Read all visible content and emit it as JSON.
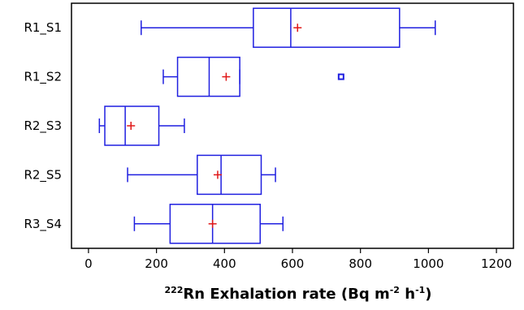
{
  "chart_data": {
    "type": "boxplot",
    "orientation": "horizontal",
    "categories": [
      "R1_S1",
      "R1_S2",
      "R2_S3",
      "R2_S5",
      "R3_S4"
    ],
    "boxes": [
      {
        "label": "R1_S1",
        "whisker_low": 155,
        "q1": 485,
        "median": 595,
        "q3": 915,
        "whisker_high": 1020,
        "mean": 615,
        "outliers": []
      },
      {
        "label": "R1_S2",
        "whisker_low": 220,
        "q1": 262,
        "median": 355,
        "q3": 445,
        "whisker_high": 445,
        "mean": 405,
        "outliers": [
          743
        ]
      },
      {
        "label": "R2_S3",
        "whisker_low": 32,
        "q1": 48,
        "median": 108,
        "q3": 207,
        "whisker_high": 282,
        "mean": 125,
        "outliers": []
      },
      {
        "label": "R2_S5",
        "whisker_low": 115,
        "q1": 320,
        "median": 390,
        "q3": 508,
        "whisker_high": 550,
        "mean": 380,
        "outliers": []
      },
      {
        "label": "R3_S4",
        "whisker_low": 135,
        "q1": 240,
        "median": 365,
        "q3": 505,
        "whisker_high": 572,
        "mean": 365,
        "outliers": []
      }
    ],
    "x_ticks": [
      0,
      200,
      400,
      600,
      800,
      1000,
      1200
    ],
    "xlim": [
      -50,
      1250
    ],
    "xlabel": {
      "sup1": "222",
      "main": "Rn Exhalation rate (Bq m",
      "sup2": "-2",
      "mid": " h",
      "sup3": "-1",
      "end": ")"
    },
    "grid": false,
    "colors": {
      "box": "#1f1fe0",
      "mean_marker": "#e01818",
      "axis": "#000000"
    }
  }
}
